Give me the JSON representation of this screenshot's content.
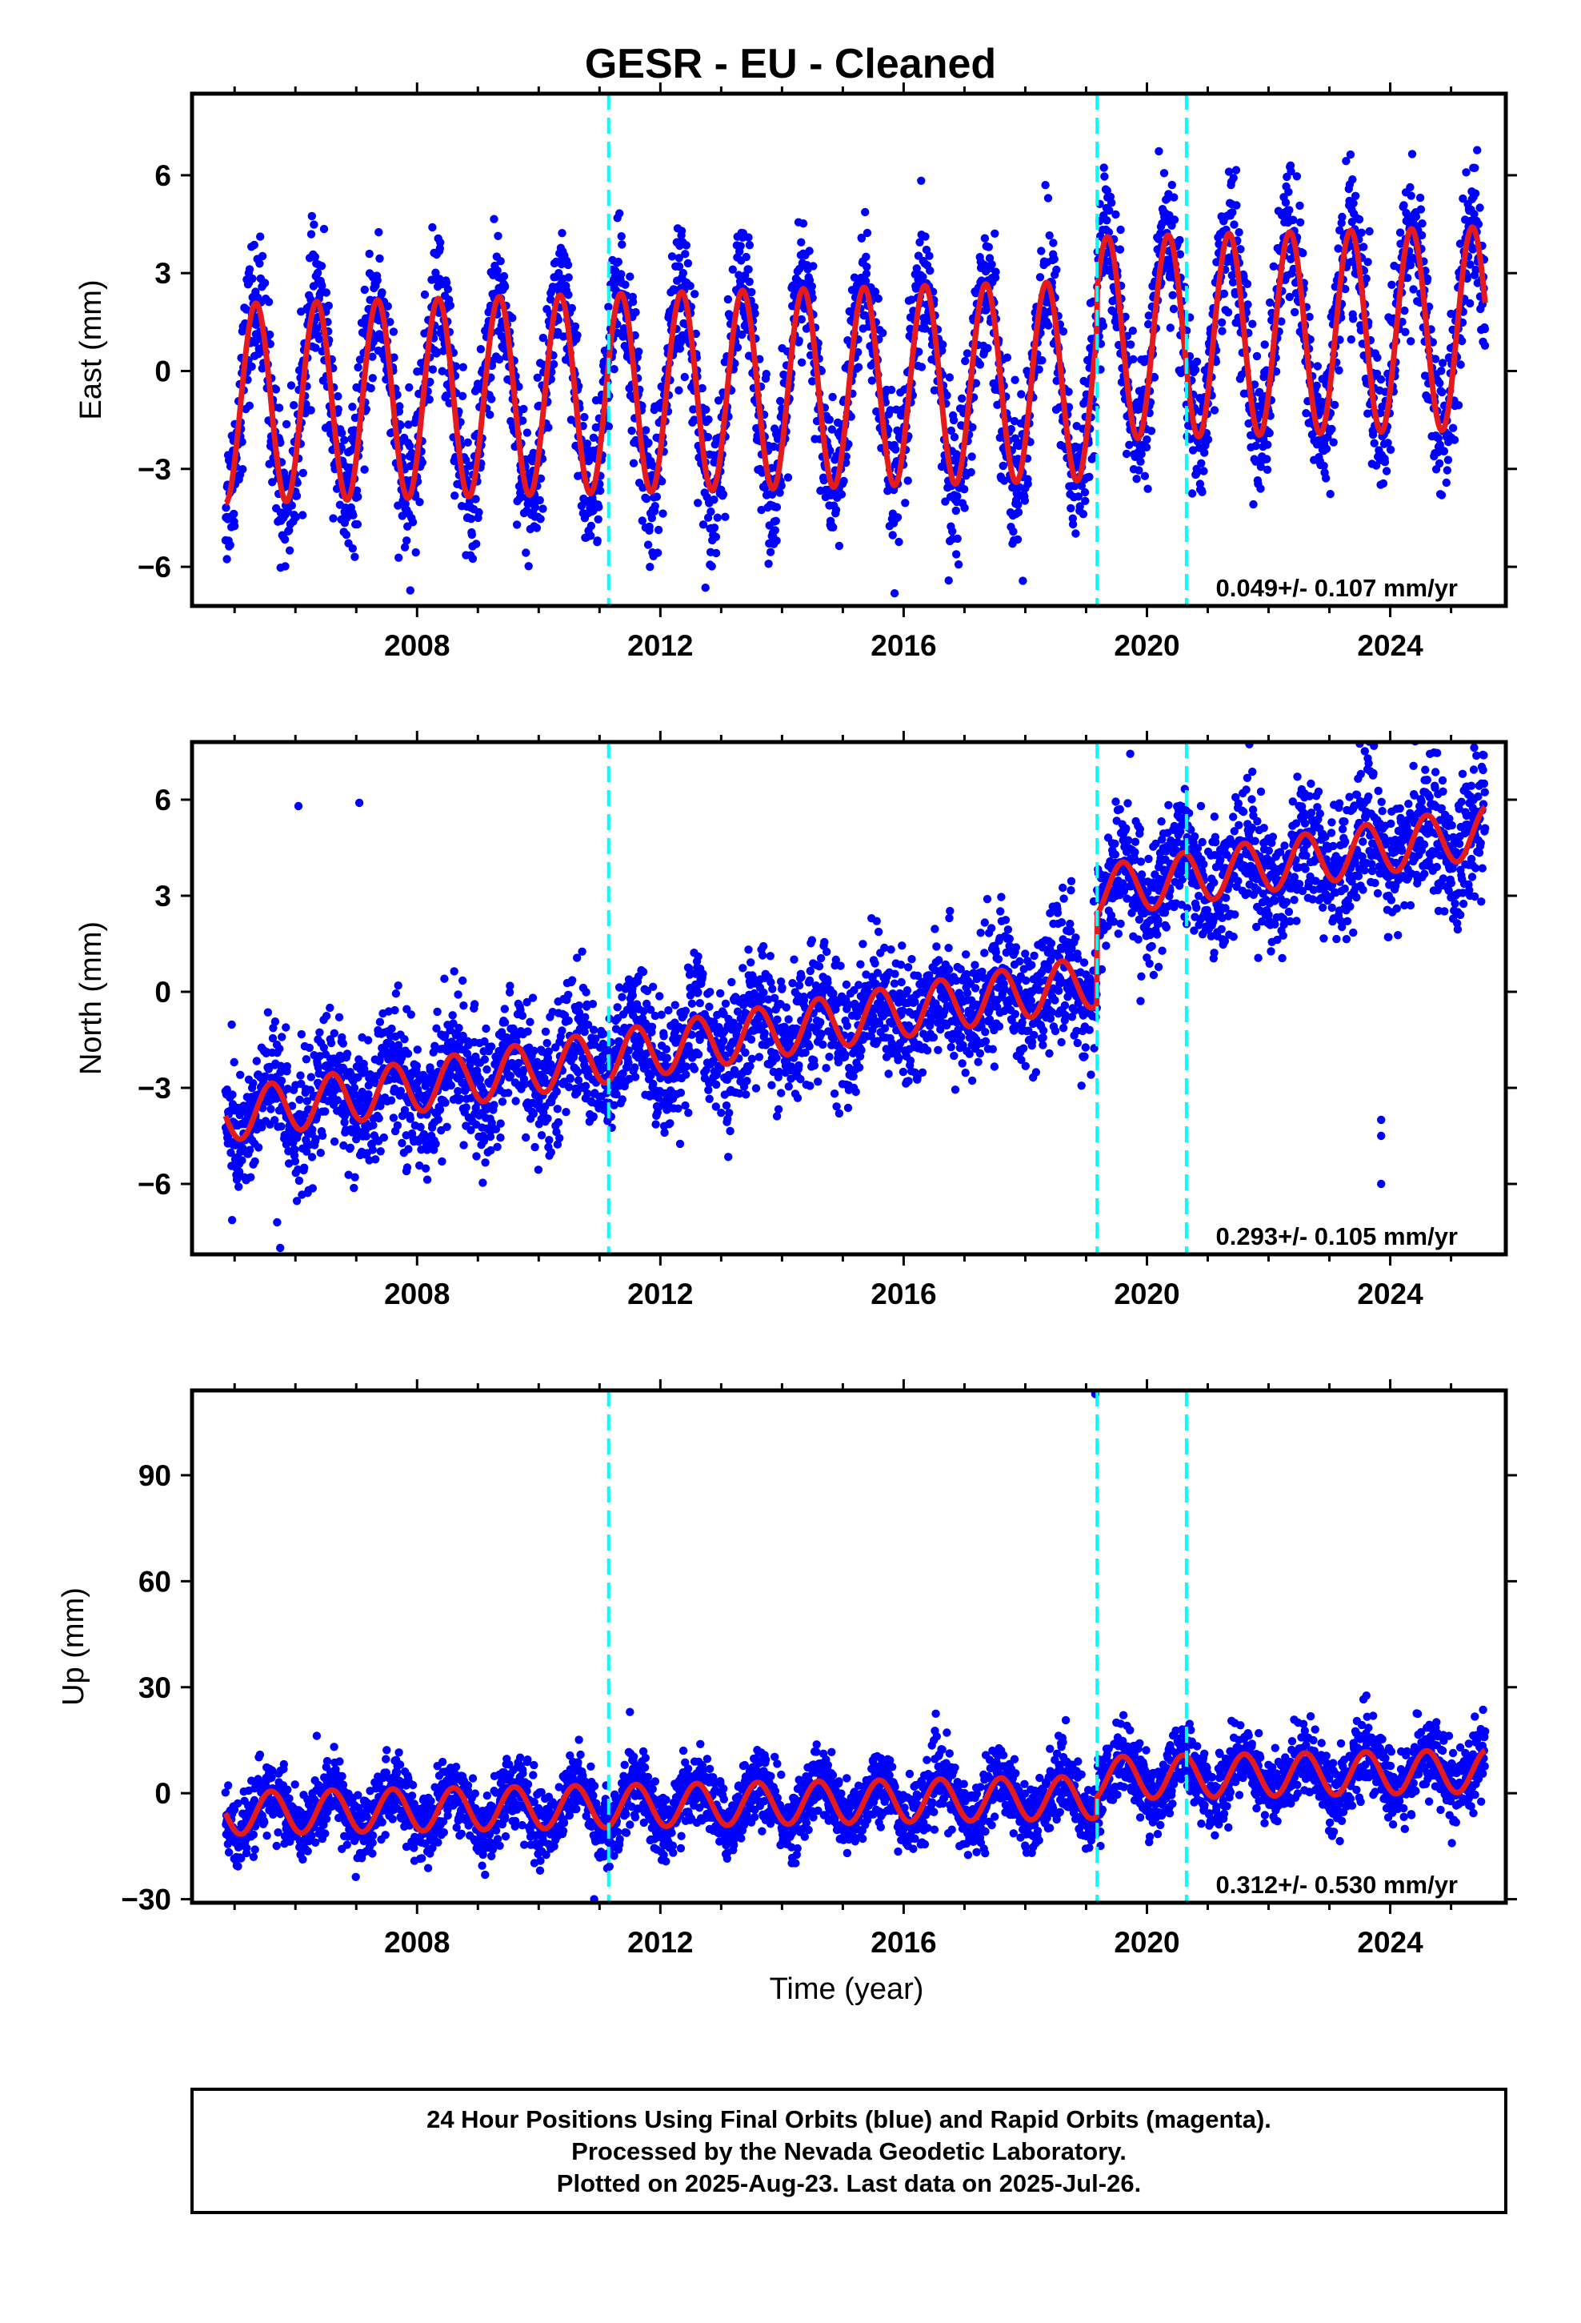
{
  "figure": {
    "title": "GESR  - EU - Cleaned",
    "xlabel": "Time (year)",
    "footer": [
      "24 Hour Positions Using Final Orbits (blue) and Rapid Orbits (magenta).",
      "Processed by the Nevada Geodetic Laboratory.",
      "Plotted on 2025-Aug-23. Last data on 2025-Jul-26."
    ],
    "colors": {
      "data": "#0000ff",
      "model": "#e41a1c",
      "breaks": "#00ffff",
      "frame": "#000000"
    }
  },
  "chart_data": [
    {
      "type": "scatter",
      "component": "East",
      "ylabel": "East (mm)",
      "xlim": [
        2004.3,
        2025.9
      ],
      "ylim": [
        -7.2,
        8.5
      ],
      "xticks": [
        2008,
        2012,
        2016,
        2020,
        2024
      ],
      "yticks": [
        -6,
        -3,
        0,
        3,
        6
      ],
      "rate_label": "0.049+/- 0.107 mm/yr",
      "data_span": [
        2004.85,
        2025.56
      ],
      "breaks": [
        2011.15,
        2019.18,
        2020.65
      ],
      "model": {
        "offset": -0.5,
        "rate_mm_per_yr": 0.049,
        "ref_year": 2015.0,
        "annual_amp_before_2019": 3.05,
        "annual_amp_after_2019": 3.1,
        "offset_after_2019.18": 1.3,
        "annual_phase_peak": 0.35
      },
      "scatter_noise_sd": 1.1,
      "grid": false
    },
    {
      "type": "scatter",
      "component": "North",
      "ylabel": "North (mm)",
      "xlim": [
        2004.3,
        2025.9
      ],
      "ylim": [
        -8.2,
        7.8
      ],
      "xticks": [
        2008,
        2012,
        2016,
        2020,
        2024
      ],
      "yticks": [
        -6,
        -3,
        0,
        3,
        6
      ],
      "rate_label": "0.293+/- 0.105 mm/yr",
      "data_span": [
        2004.85,
        2025.56
      ],
      "breaks": [
        2011.15,
        2019.18,
        2020.65
      ],
      "model": {
        "offset": -0.9,
        "rate_mm_per_yr": 0.293,
        "ref_year": 2015.0,
        "annual_amp": 0.8,
        "offset_after_2019.18": 2.8,
        "annual_phase_peak": 0.6
      },
      "scatter_noise_sd": 1.0,
      "outliers": [
        [
          2006.05,
          5.8
        ],
        [
          2007.05,
          5.9
        ],
        [
          2005.7,
          -7.2
        ],
        [
          2005.75,
          -8.0
        ],
        [
          2023.85,
          -4.0
        ],
        [
          2023.85,
          -4.5
        ],
        [
          2023.85,
          -6.0
        ]
      ],
      "grid": false
    },
    {
      "type": "scatter",
      "component": "Up",
      "ylabel": "Up (mm)",
      "xlim": [
        2004.3,
        2025.9
      ],
      "ylim": [
        -31,
        114
      ],
      "xticks": [
        2008,
        2012,
        2016,
        2020,
        2024
      ],
      "yticks": [
        -30,
        0,
        30,
        60,
        90
      ],
      "rate_label": "0.312+/- 0.530 mm/yr",
      "data_span": [
        2004.85,
        2025.56
      ],
      "breaks": [
        2011.15,
        2019.18,
        2020.65
      ],
      "model": {
        "offset": -2.5,
        "rate_mm_per_yr": 0.312,
        "ref_year": 2015.0,
        "annual_amp": 6.0,
        "offset_after_2019.18": 5.5,
        "annual_phase_peak": 0.6
      },
      "scatter_noise_sd": 5.0,
      "outliers": [
        [
          2019.15,
          113
        ],
        [
          2011.5,
          23
        ]
      ],
      "grid": false
    }
  ]
}
